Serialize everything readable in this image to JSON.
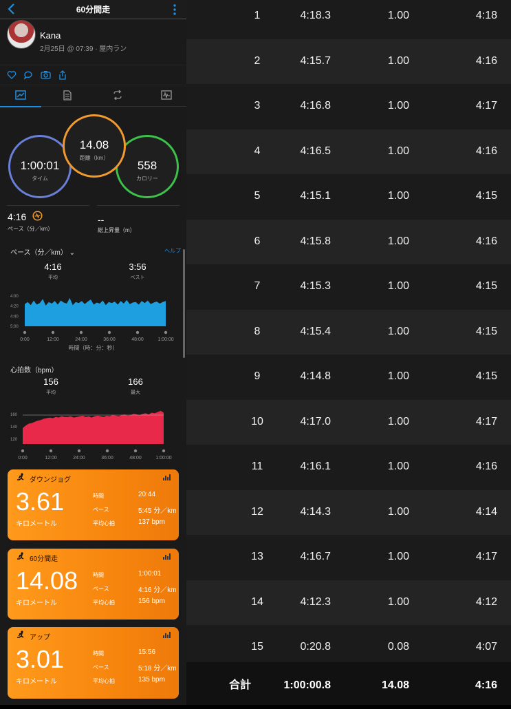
{
  "header": {
    "title": "60分間走"
  },
  "profile": {
    "name": "Kana",
    "meta": "2月25日 @ 07:39 · 屋内ラン"
  },
  "rings": {
    "time": {
      "value": "1:00:01",
      "label": "タイム"
    },
    "distance": {
      "value": "14.08",
      "label": "距離（km）"
    },
    "calories": {
      "value": "558",
      "label": "カロリー"
    }
  },
  "summary": {
    "pace": {
      "value": "4:16",
      "label": "ペース（分／km）"
    },
    "elevation": {
      "value": "--",
      "label": "総上昇量（m）"
    }
  },
  "pace_chart": {
    "title": "ペース（分／km）",
    "help": "ヘルプ",
    "avg": {
      "value": "4:16",
      "label": "平均"
    },
    "best": {
      "value": "3:56",
      "label": "ベスト"
    },
    "xlabel": "時間（時：分：秒）"
  },
  "hr_chart": {
    "title": "心拍数（bpm）",
    "avg": {
      "value": "156",
      "label": "平均"
    },
    "max": {
      "value": "166",
      "label": "最大"
    }
  },
  "chart_data": [
    {
      "type": "area",
      "title": "ペース（分／km）",
      "xlabel": "時間（時：分：秒）",
      "x_ticks": [
        "0:00",
        "12:00",
        "24:00",
        "36:00",
        "48:00",
        "1:00:00"
      ],
      "y_ticks": [
        "4:00",
        "4:20",
        "4:40",
        "5:00"
      ],
      "ylim_sec": [
        240,
        300
      ],
      "series": [
        {
          "values_sec": [
            256,
            252,
            258,
            249,
            257,
            254,
            246,
            259,
            252,
            255,
            250,
            257,
            249,
            253,
            255,
            244,
            258,
            252,
            254,
            250,
            256,
            251,
            247,
            257,
            253,
            255,
            249,
            258,
            252,
            254,
            251,
            257,
            250,
            255,
            248,
            256,
            253,
            252,
            257,
            250,
            254,
            249,
            256,
            253,
            251,
            255,
            252,
            250
          ]
        }
      ]
    },
    {
      "type": "area",
      "title": "心拍数（bpm）",
      "x_ticks": [
        "0:00",
        "12:00",
        "24:00",
        "36:00",
        "48:00",
        "1:00:00"
      ],
      "y_ticks": [
        "120",
        "140",
        "160"
      ],
      "ylim": [
        112,
        168
      ],
      "series": [
        {
          "values": [
            138,
            142,
            145,
            146,
            148,
            150,
            151,
            153,
            154,
            155,
            154,
            156,
            155,
            157,
            156,
            156,
            157,
            155,
            156,
            157,
            158,
            156,
            157,
            155,
            157,
            158,
            157,
            156,
            158,
            157,
            159,
            158,
            157,
            159,
            160,
            158,
            159,
            161,
            160,
            159,
            161,
            162,
            160,
            163,
            162,
            164,
            166,
            163
          ]
        }
      ]
    }
  ],
  "cards": [
    {
      "name": "ダウンジョグ",
      "distance": "3.61",
      "unit": "キロメートル",
      "time_label": "時間",
      "time": "20:44",
      "pace_label": "ペース",
      "pace": "5:45 分／km",
      "hr_label": "平均心拍",
      "hr": "137 bpm"
    },
    {
      "name": "60分間走",
      "distance": "14.08",
      "unit": "キロメートル",
      "time_label": "時間",
      "time": "1:00:01",
      "pace_label": "ペース",
      "pace": "4:16 分／km",
      "hr_label": "平均心拍",
      "hr": "156 bpm"
    },
    {
      "name": "アップ",
      "distance": "3.01",
      "unit": "キロメートル",
      "time_label": "時間",
      "time": "15:56",
      "pace_label": "ペース",
      "pace": "5:18 分／km",
      "hr_label": "平均心拍",
      "hr": "135 bpm"
    }
  ],
  "laps": [
    {
      "lap": "1",
      "time": "4:18.3",
      "dist": "1.00",
      "pace": "4:18"
    },
    {
      "lap": "2",
      "time": "4:15.7",
      "dist": "1.00",
      "pace": "4:16"
    },
    {
      "lap": "3",
      "time": "4:16.8",
      "dist": "1.00",
      "pace": "4:17"
    },
    {
      "lap": "4",
      "time": "4:16.5",
      "dist": "1.00",
      "pace": "4:16"
    },
    {
      "lap": "5",
      "time": "4:15.1",
      "dist": "1.00",
      "pace": "4:15"
    },
    {
      "lap": "6",
      "time": "4:15.8",
      "dist": "1.00",
      "pace": "4:16"
    },
    {
      "lap": "7",
      "time": "4:15.3",
      "dist": "1.00",
      "pace": "4:15"
    },
    {
      "lap": "8",
      "time": "4:15.4",
      "dist": "1.00",
      "pace": "4:15"
    },
    {
      "lap": "9",
      "time": "4:14.8",
      "dist": "1.00",
      "pace": "4:15"
    },
    {
      "lap": "10",
      "time": "4:17.0",
      "dist": "1.00",
      "pace": "4:17"
    },
    {
      "lap": "11",
      "time": "4:16.1",
      "dist": "1.00",
      "pace": "4:16"
    },
    {
      "lap": "12",
      "time": "4:14.3",
      "dist": "1.00",
      "pace": "4:14"
    },
    {
      "lap": "13",
      "time": "4:16.7",
      "dist": "1.00",
      "pace": "4:17"
    },
    {
      "lap": "14",
      "time": "4:12.3",
      "dist": "1.00",
      "pace": "4:12"
    },
    {
      "lap": "15",
      "time": "0:20.8",
      "dist": "0.08",
      "pace": "4:07"
    }
  ],
  "total": {
    "label": "合計",
    "time": "1:00:00.8",
    "dist": "14.08",
    "pace": "4:16"
  },
  "colors": {
    "accent": "#1d8fe1",
    "pace": "#1ea0e0",
    "hr": "#e8294a",
    "card": "#f7860e",
    "time_ring": "#6a7fd8",
    "dist_ring": "#f39a2e",
    "cal_ring": "#3cc24a"
  },
  "icons": [
    "back-icon",
    "more-icon",
    "heart-icon",
    "comment-icon",
    "camera-icon",
    "share-icon",
    "runner-icon",
    "bar-chart-icon"
  ]
}
